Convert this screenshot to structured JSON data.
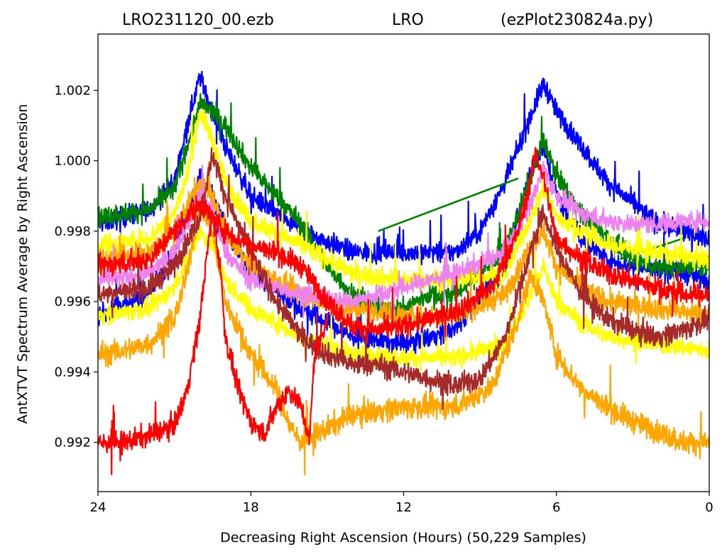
{
  "title": {
    "left": "LRO231120_00.ezb",
    "middle": "LRO",
    "right": "(ezPlot230824a.py)"
  },
  "chart_data": {
    "type": "line",
    "xlabel": "Decreasing Right Ascension (Hours) (50,229 Samples)",
    "ylabel": "AntXTVT Spectrum Average by Right Ascension",
    "xlim": [
      24,
      0
    ],
    "ylim": [
      0.9906,
      1.0036
    ],
    "x_ticks": [
      24,
      18,
      12,
      6,
      0
    ],
    "x_tick_labels": [
      "24",
      "18",
      "12",
      "6",
      "0"
    ],
    "y_ticks": [
      0.992,
      0.994,
      0.996,
      0.998,
      1.0,
      1.002
    ],
    "y_tick_labels": [
      "0.992",
      "0.994",
      "0.996",
      "0.998",
      "1.000",
      "1.002"
    ],
    "grid": false,
    "series": [
      {
        "color": "#0000ff",
        "noise": 0.00028,
        "points": [
          [
            24,
            0.9982
          ],
          [
            22,
            0.9986
          ],
          [
            21,
            0.9994
          ],
          [
            20.5,
            1.001
          ],
          [
            20,
            1.0024
          ],
          [
            19.5,
            1.0014
          ],
          [
            19,
            1.0004
          ],
          [
            18,
            0.999
          ],
          [
            16,
            0.998
          ],
          [
            14,
            0.9974
          ],
          [
            12,
            0.9974
          ],
          [
            10,
            0.9974
          ],
          [
            9,
            0.998
          ],
          [
            8,
            0.9994
          ],
          [
            7,
            1.0013
          ],
          [
            6.5,
            1.0022
          ],
          [
            6,
            1.0014
          ],
          [
            5,
            1.0004
          ],
          [
            4,
            0.9994
          ],
          [
            3,
            0.9988
          ],
          [
            2,
            0.9982
          ],
          [
            1,
            0.998
          ],
          [
            0,
            0.9978
          ]
        ]
      },
      {
        "color": "#0000ff",
        "noise": 0.00028,
        "points": [
          [
            24,
            0.9956
          ],
          [
            22,
            0.9962
          ],
          [
            21,
            0.9974
          ],
          [
            20,
            0.9996
          ],
          [
            19.5,
            0.999
          ],
          [
            19,
            0.998
          ],
          [
            18,
            0.9968
          ],
          [
            16,
            0.9958
          ],
          [
            14,
            0.995
          ],
          [
            12,
            0.9948
          ],
          [
            10,
            0.9952
          ],
          [
            8,
            0.997
          ],
          [
            7,
            0.9998
          ],
          [
            6.5,
            1.0004
          ],
          [
            6,
            0.999
          ],
          [
            5,
            0.9978
          ],
          [
            4,
            0.9972
          ],
          [
            3,
            0.997
          ],
          [
            1,
            0.9968
          ],
          [
            0,
            0.9966
          ]
        ]
      },
      {
        "color": "#008000",
        "noise": 0.00028,
        "points": [
          [
            24,
            0.9984
          ],
          [
            22,
            0.9986
          ],
          [
            21,
            0.9992
          ],
          [
            20.5,
            1.0004
          ],
          [
            20,
            1.0016
          ],
          [
            19.5,
            1.0014
          ],
          [
            19,
            1.001
          ],
          [
            18,
            0.9998
          ],
          [
            16,
            0.9982
          ],
          [
            15,
            0.997
          ],
          [
            14,
            0.9962
          ],
          [
            13,
            0.9958
          ],
          [
            12,
            0.9958
          ],
          [
            11,
            0.9962
          ],
          [
            10,
            0.9962
          ],
          [
            8,
            0.9974
          ],
          [
            7,
            0.9996
          ],
          [
            6.5,
            1.0006
          ],
          [
            6,
            0.9996
          ],
          [
            5,
            0.9985
          ],
          [
            4,
            0.9978
          ],
          [
            3,
            0.9972
          ],
          [
            2,
            0.997
          ],
          [
            1,
            0.997
          ],
          [
            0,
            0.997
          ]
        ]
      },
      {
        "color": "#008000",
        "noise": 0.0,
        "points": [
          [
            13,
            0.998
          ],
          [
            7.5,
            0.9995
          ]
        ]
      },
      {
        "color": "#008000",
        "noise": 0.0,
        "points": [
          [
            3.5,
            0.9972
          ],
          [
            1,
            0.9978
          ]
        ]
      },
      {
        "color": "#ffff00",
        "noise": 0.00028,
        "points": [
          [
            24,
            0.9976
          ],
          [
            22,
            0.9978
          ],
          [
            21,
            0.9985
          ],
          [
            20.5,
            0.9996
          ],
          [
            20,
            1.0014
          ],
          [
            19.5,
            1.0006
          ],
          [
            19,
            0.9994
          ],
          [
            18,
            0.9983
          ],
          [
            16,
            0.9976
          ],
          [
            14,
            0.9968
          ],
          [
            12,
            0.9966
          ],
          [
            10,
            0.9966
          ],
          [
            8,
            0.9968
          ],
          [
            7,
            0.9984
          ],
          [
            6.5,
            0.9992
          ],
          [
            6,
            0.9984
          ],
          [
            5,
            0.998
          ],
          [
            4,
            0.9976
          ],
          [
            2,
            0.9974
          ],
          [
            0,
            0.9972
          ]
        ]
      },
      {
        "color": "#ffff00",
        "noise": 0.00026,
        "points": [
          [
            24,
            0.9956
          ],
          [
            22,
            0.9958
          ],
          [
            21,
            0.9964
          ],
          [
            20,
            0.998
          ],
          [
            19.5,
            0.9976
          ],
          [
            19,
            0.9966
          ],
          [
            18,
            0.9958
          ],
          [
            16,
            0.995
          ],
          [
            14,
            0.9945
          ],
          [
            12,
            0.9944
          ],
          [
            10,
            0.9944
          ],
          [
            8,
            0.9948
          ],
          [
            7,
            0.9962
          ],
          [
            6.5,
            0.997
          ],
          [
            6,
            0.996
          ],
          [
            5,
            0.9954
          ],
          [
            4,
            0.995
          ],
          [
            2,
            0.9948
          ],
          [
            0,
            0.9946
          ]
        ]
      },
      {
        "color": "#ffa500",
        "noise": 0.0003,
        "points": [
          [
            24,
            0.9972
          ],
          [
            22,
            0.9974
          ],
          [
            21,
            0.998
          ],
          [
            20,
            0.9994
          ],
          [
            19.5,
            0.999
          ],
          [
            19,
            0.998
          ],
          [
            18,
            0.997
          ],
          [
            16,
            0.9962
          ],
          [
            14,
            0.9958
          ],
          [
            12,
            0.9956
          ],
          [
            10,
            0.9956
          ],
          [
            8,
            0.9962
          ],
          [
            7,
            0.9976
          ],
          [
            6.5,
            0.998
          ],
          [
            6,
            0.997
          ],
          [
            5,
            0.9964
          ],
          [
            4,
            0.996
          ],
          [
            2,
            0.9958
          ],
          [
            0,
            0.9956
          ]
        ]
      },
      {
        "color": "#ffa500",
        "noise": 0.00032,
        "points": [
          [
            24,
            0.9945
          ],
          [
            23,
            0.9946
          ],
          [
            22,
            0.9948
          ],
          [
            21,
            0.9955
          ],
          [
            20.5,
            0.9968
          ],
          [
            20,
            0.9988
          ],
          [
            19.5,
            0.998
          ],
          [
            19,
            0.996
          ],
          [
            18,
            0.9945
          ],
          [
            17,
            0.9935
          ],
          [
            16.5,
            0.9925
          ],
          [
            16,
            0.992
          ],
          [
            15,
            0.9924
          ],
          [
            14,
            0.9928
          ],
          [
            12,
            0.993
          ],
          [
            10,
            0.993
          ],
          [
            8.5,
            0.9936
          ],
          [
            7.5,
            0.9955
          ],
          [
            7,
            0.9968
          ],
          [
            6.5,
            0.996
          ],
          [
            6,
            0.9945
          ],
          [
            5,
            0.9935
          ],
          [
            4,
            0.993
          ],
          [
            3,
            0.9926
          ],
          [
            2,
            0.9923
          ],
          [
            1,
            0.992
          ],
          [
            0,
            0.992
          ]
        ]
      },
      {
        "color": "#ee82ee",
        "noise": 0.00026,
        "points": [
          [
            24,
            0.9966
          ],
          [
            22,
            0.9968
          ],
          [
            21,
            0.9974
          ],
          [
            20,
            0.999
          ],
          [
            19.5,
            0.9986
          ],
          [
            19,
            0.9974
          ],
          [
            18,
            0.9966
          ],
          [
            16,
            0.9962
          ],
          [
            14,
            0.996
          ],
          [
            12,
            0.9964
          ],
          [
            10,
            0.9968
          ],
          [
            8,
            0.9974
          ],
          [
            7,
            0.9988
          ],
          [
            6.5,
            0.9998
          ],
          [
            6,
            0.999
          ],
          [
            5,
            0.9985
          ],
          [
            4,
            0.9983
          ],
          [
            3,
            0.9982
          ],
          [
            2,
            0.9982
          ],
          [
            1,
            0.9983
          ],
          [
            0,
            0.9983
          ]
        ]
      },
      {
        "color": "#a52a2a",
        "noise": 0.0003,
        "points": [
          [
            24,
            0.9962
          ],
          [
            22,
            0.9964
          ],
          [
            21,
            0.997
          ],
          [
            20,
            0.9984
          ],
          [
            19.5,
            1.0002
          ],
          [
            19,
            0.999
          ],
          [
            18,
            0.9974
          ],
          [
            17,
            0.996
          ],
          [
            16,
            0.995
          ],
          [
            15,
            0.9945
          ],
          [
            14,
            0.9942
          ],
          [
            13,
            0.9942
          ],
          [
            12,
            0.994
          ],
          [
            11,
            0.9938
          ],
          [
            10,
            0.9936
          ],
          [
            9,
            0.9938
          ],
          [
            8,
            0.995
          ],
          [
            7,
            0.9975
          ],
          [
            6.5,
            0.9985
          ],
          [
            6,
            0.9975
          ],
          [
            5,
            0.9962
          ],
          [
            4,
            0.9955
          ],
          [
            3,
            0.9952
          ],
          [
            2,
            0.995
          ],
          [
            1,
            0.9952
          ],
          [
            0,
            0.9955
          ]
        ]
      },
      {
        "color": "#ff0000",
        "noise": 0.0003,
        "points": [
          [
            24,
            0.997
          ],
          [
            22,
            0.9972
          ],
          [
            21,
            0.998
          ],
          [
            20,
            0.9988
          ],
          [
            19.5,
            0.9984
          ],
          [
            19,
            0.998
          ],
          [
            18,
            0.9976
          ],
          [
            17,
            0.9974
          ],
          [
            16,
            0.997
          ],
          [
            15,
            0.996
          ],
          [
            14,
            0.9953
          ],
          [
            13,
            0.9952
          ],
          [
            12,
            0.9953
          ],
          [
            11,
            0.9955
          ],
          [
            10,
            0.9957
          ],
          [
            8.5,
            0.9964
          ],
          [
            7.5,
            0.998
          ],
          [
            7,
            0.9995
          ],
          [
            6.8,
            1.0002
          ],
          [
            6.5,
            0.9995
          ],
          [
            6,
            0.9978
          ],
          [
            5,
            0.9972
          ],
          [
            4,
            0.9968
          ],
          [
            3,
            0.9966
          ],
          [
            2,
            0.9964
          ],
          [
            1,
            0.9962
          ],
          [
            0,
            0.9962
          ]
        ]
      },
      {
        "color": "#ff0000",
        "noise": 0.0003,
        "points": [
          [
            24,
            0.992
          ],
          [
            23,
            0.992
          ],
          [
            22,
            0.9922
          ],
          [
            21,
            0.9925
          ],
          [
            20.5,
            0.9935
          ],
          [
            20,
            0.9955
          ],
          [
            19.7,
            0.9975
          ],
          [
            19.5,
            0.9985
          ],
          [
            19.2,
            0.997
          ],
          [
            19,
            0.995
          ],
          [
            18.5,
            0.9935
          ],
          [
            18,
            0.9926
          ],
          [
            17.5,
            0.9922
          ],
          [
            17,
            0.993
          ],
          [
            16.5,
            0.9935
          ],
          [
            16,
            0.993
          ],
          [
            15.7,
            0.992
          ],
          [
            15.5,
            0.9945
          ],
          [
            15,
            0.9955
          ]
        ]
      }
    ]
  }
}
